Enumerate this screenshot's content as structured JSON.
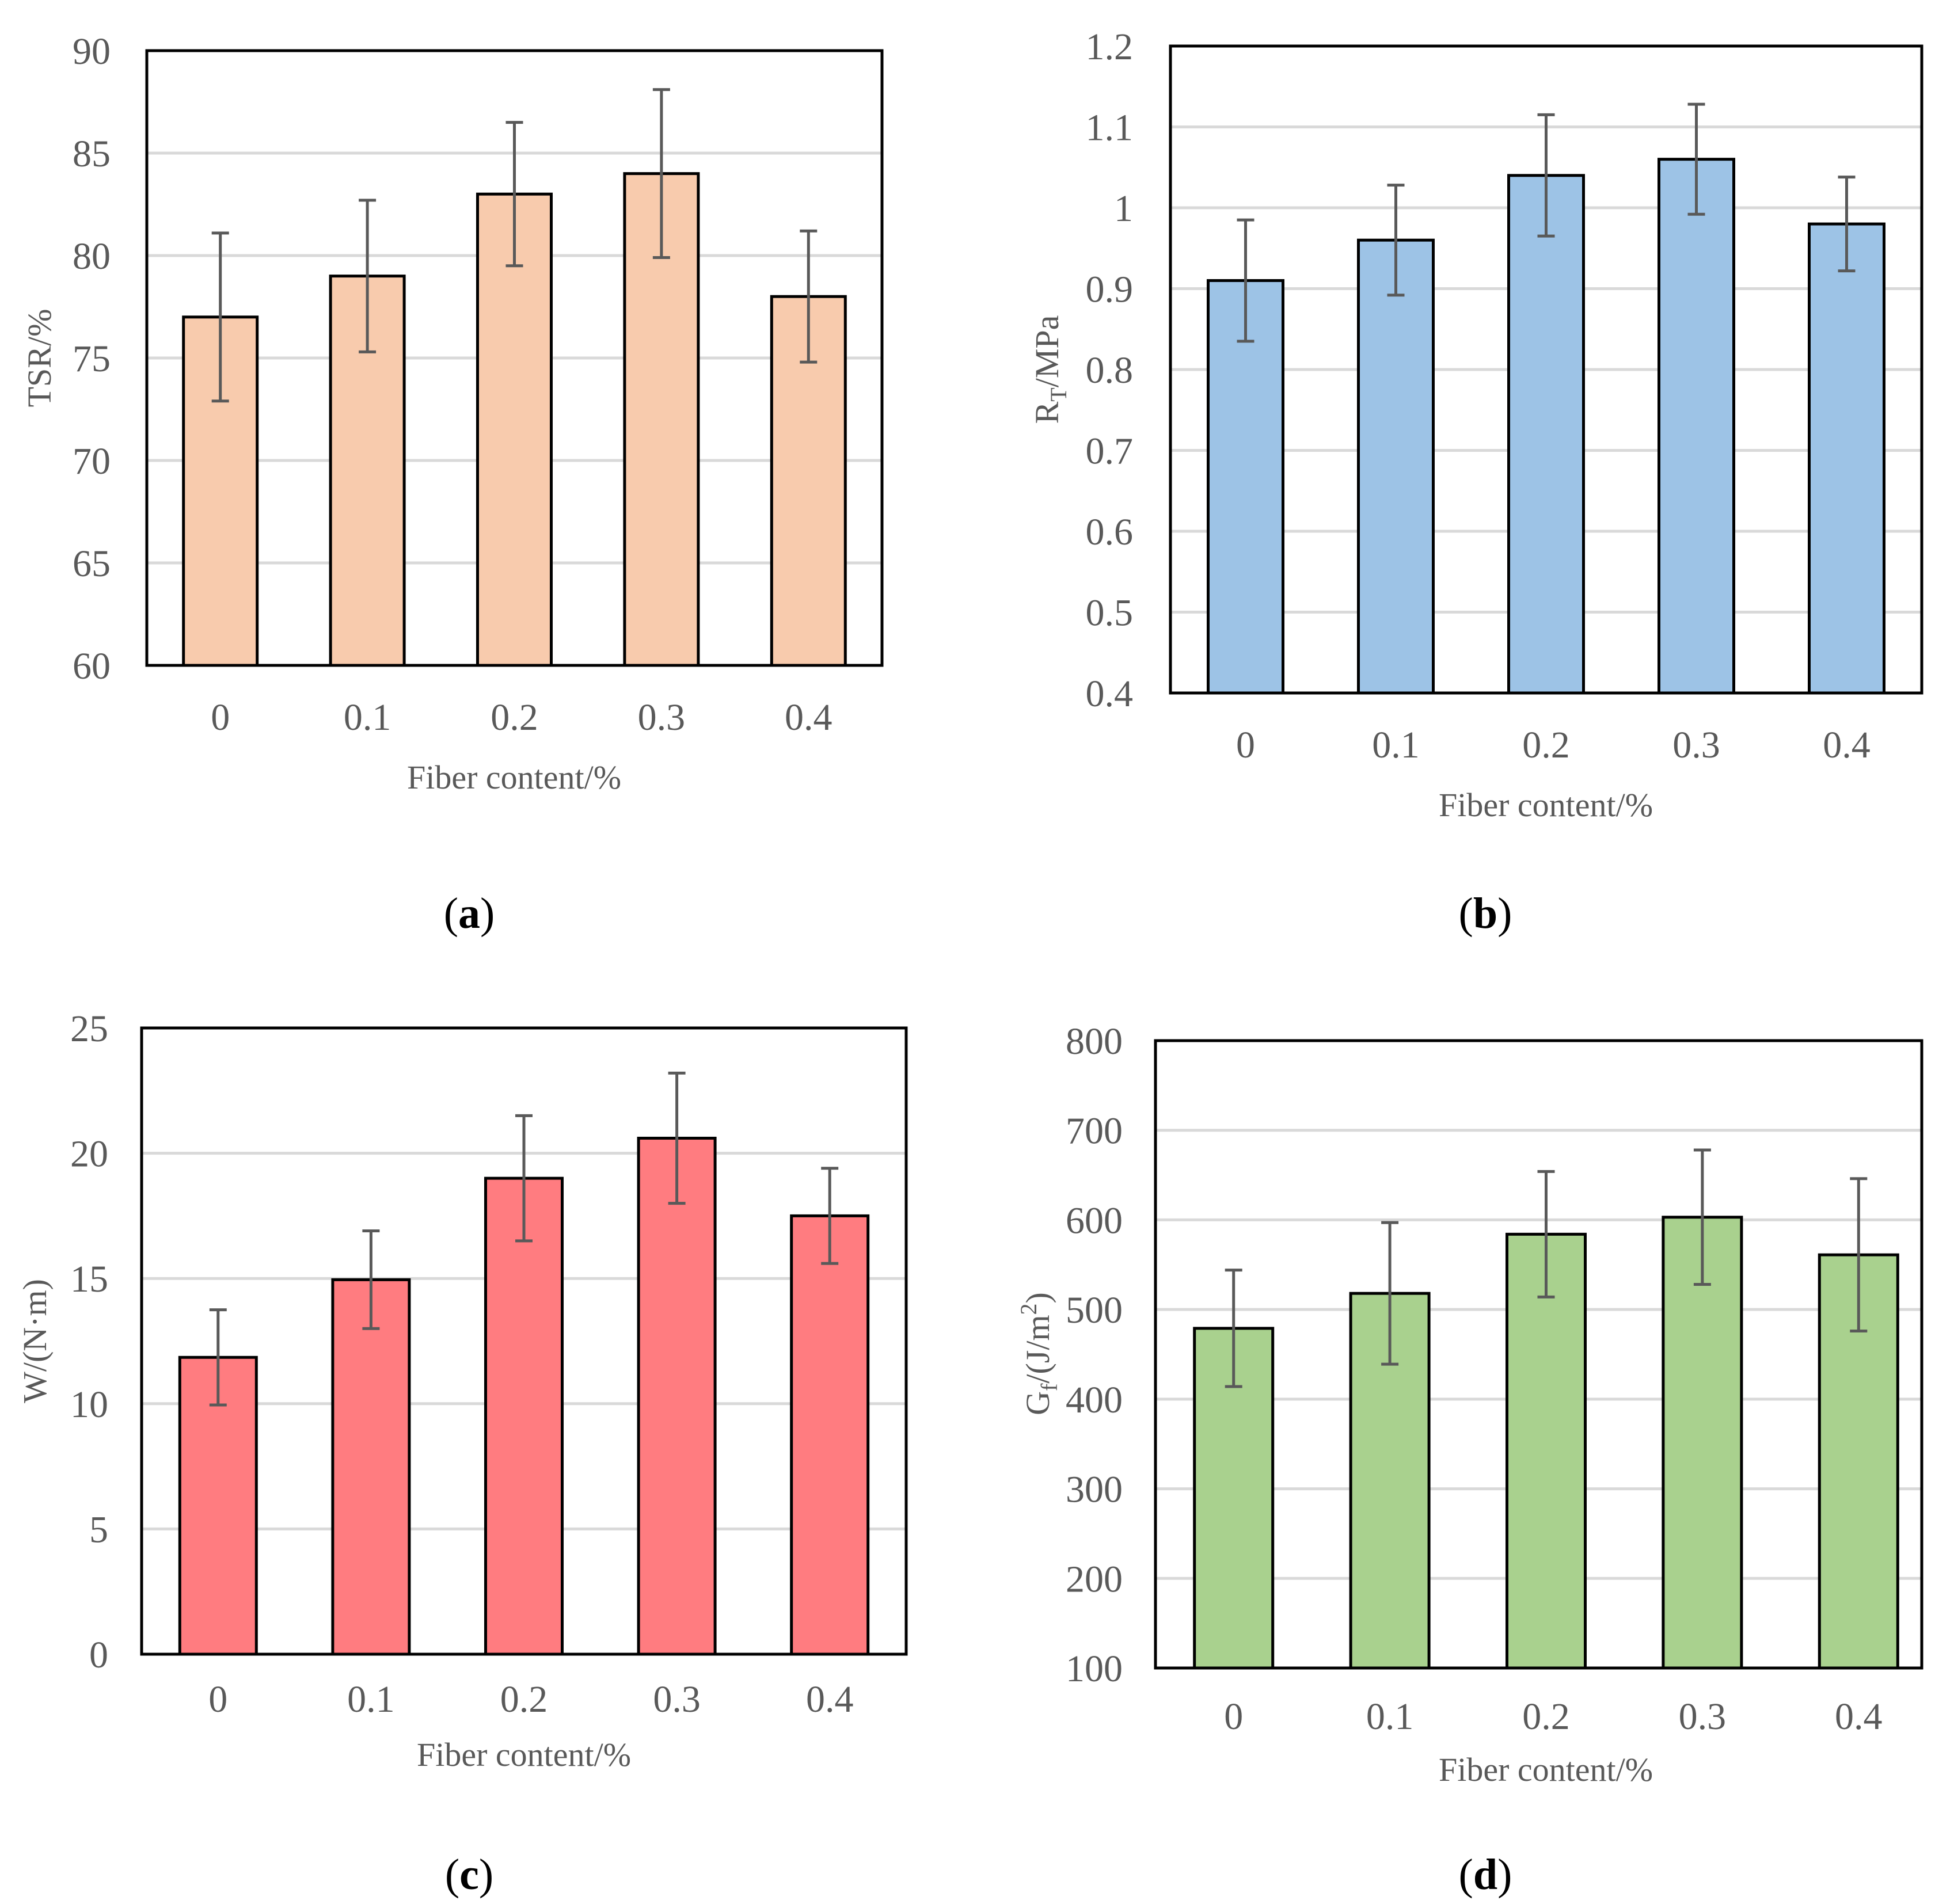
{
  "chart_data": [
    {
      "type": "bar",
      "panel": "a",
      "categories": [
        "0",
        "0.1",
        "0.2",
        "0.3",
        "0.4"
      ],
      "values": [
        77,
        79,
        83,
        84,
        78
      ],
      "error": [
        4.1,
        3.7,
        3.5,
        4.1,
        3.2
      ],
      "xlabel": "Fiber content/%",
      "ylabel": "TSR/%",
      "ylim": [
        60,
        90
      ],
      "yticks": [
        "60",
        "65",
        "70",
        "75",
        "80",
        "85",
        "90"
      ],
      "grid": true,
      "color": "#f8cbad",
      "panel_label_open": "(",
      "panel_label_letter": "a",
      "panel_label_close": ")"
    },
    {
      "type": "bar",
      "panel": "b",
      "categories": [
        "0",
        "0.1",
        "0.2",
        "0.3",
        "0.4"
      ],
      "values": [
        0.91,
        0.96,
        1.04,
        1.06,
        0.98
      ],
      "error": [
        0.075,
        0.068,
        0.075,
        0.068,
        0.058
      ],
      "xlabel": "Fiber content/%",
      "ylabel_main": "R",
      "ylabel_sub": "T",
      "ylabel_rest": "/MPa",
      "ylim": [
        0.4,
        1.2
      ],
      "yticks": [
        "0.4",
        "0.5",
        "0.6",
        "0.7",
        "0.8",
        "0.9",
        "1",
        "1.1",
        "1.2"
      ],
      "grid": true,
      "color": "#9dc3e6",
      "panel_label_open": "(",
      "panel_label_letter": "b",
      "panel_label_close": ")"
    },
    {
      "type": "bar",
      "panel": "c",
      "categories": [
        "0",
        "0.1",
        "0.2",
        "0.3",
        "0.4"
      ],
      "values": [
        11.85,
        14.95,
        19.0,
        20.6,
        17.5
      ],
      "error": [
        1.9,
        1.95,
        2.5,
        2.6,
        1.9
      ],
      "xlabel": "Fiber content/%",
      "ylabel": "W/(N·m)",
      "ylim": [
        0,
        25
      ],
      "yticks": [
        "0",
        "5",
        "10",
        "15",
        "20",
        "25"
      ],
      "grid": true,
      "color": "#ff7c80",
      "panel_label_open": "(",
      "panel_label_letter": "c",
      "panel_label_close": ")"
    },
    {
      "type": "bar",
      "panel": "d",
      "categories": [
        "0",
        "0.1",
        "0.2",
        "0.3",
        "0.4"
      ],
      "values": [
        479,
        518,
        584,
        603,
        561
      ],
      "error": [
        65,
        79,
        70,
        75,
        85
      ],
      "xlabel": "Fiber content/%",
      "ylabel_main": "G",
      "ylabel_sub": "f",
      "ylabel_rest": "/(J/m",
      "ylabel_sup": "2",
      "ylabel_end": ")",
      "ylim": [
        100,
        800
      ],
      "yticks": [
        "100",
        "200",
        "300",
        "400",
        "500",
        "600",
        "700",
        "800"
      ],
      "grid": true,
      "color": "#a9d18e",
      "panel_label_open": "(",
      "panel_label_letter": "d",
      "panel_label_close": ")"
    }
  ]
}
